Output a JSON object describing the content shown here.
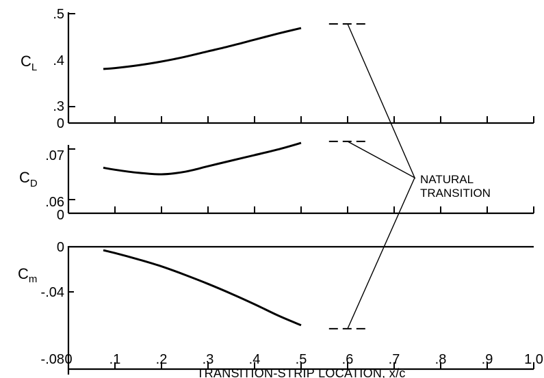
{
  "chart_data": [
    {
      "type": "line",
      "panel": "lift",
      "ylabel": "C",
      "ylabel_sub": "L",
      "x": [
        0.075,
        0.1,
        0.15,
        0.2,
        0.25,
        0.3,
        0.35,
        0.4,
        0.45,
        0.5
      ],
      "values": [
        0.381,
        0.383,
        0.389,
        0.397,
        0.407,
        0.419,
        0.431,
        0.444,
        0.457,
        0.469
      ],
      "natural_transition": 0.478,
      "ylim": [
        0.3,
        0.5
      ],
      "yticks": [
        ".3",
        ".4",
        ".5"
      ],
      "baseline_label": "0"
    },
    {
      "type": "line",
      "panel": "drag",
      "ylabel": "C",
      "ylabel_sub": "D",
      "x": [
        0.075,
        0.1,
        0.15,
        0.2,
        0.25,
        0.3,
        0.35,
        0.4,
        0.45,
        0.5
      ],
      "values": [
        0.0663,
        0.0659,
        0.0653,
        0.065,
        0.0655,
        0.0666,
        0.0677,
        0.0688,
        0.0699,
        0.0712
      ],
      "natural_transition": 0.0715,
      "ylim": [
        0.06,
        0.072
      ],
      "yticks": [
        ".06",
        ".07"
      ],
      "baseline_label": "0"
    },
    {
      "type": "line",
      "panel": "moment",
      "ylabel": "C",
      "ylabel_sub": "m",
      "x": [
        0.075,
        0.1,
        0.15,
        0.2,
        0.25,
        0.3,
        0.35,
        0.4,
        0.45,
        0.5
      ],
      "values": [
        -0.0025,
        -0.0045,
        -0.009,
        -0.014,
        -0.02,
        -0.0265,
        -0.0335,
        -0.041,
        -0.049,
        -0.056
      ],
      "natural_transition": -0.0585,
      "ylim": [
        -0.08,
        0.0
      ],
      "yticks": [
        "-.08",
        "-.04",
        "0"
      ]
    }
  ],
  "xaxis": {
    "title": "TRANSITION-STRIP LOCATION, x/c",
    "ticks": [
      "0",
      ".1",
      ".2",
      ".3",
      ".4",
      ".5",
      ".6",
      ".7",
      ".8",
      ".9",
      "1.0"
    ],
    "tick_values": [
      0,
      0.1,
      0.2,
      0.3,
      0.4,
      0.5,
      0.6,
      0.7,
      0.8,
      0.9,
      1.0
    ],
    "range": [
      0,
      1.0
    ]
  },
  "annotation": {
    "line1": "NATURAL",
    "line2": "TRANSITION",
    "x_start": 0.56,
    "x_end": 0.64,
    "leader_tip_x": 0.6
  }
}
